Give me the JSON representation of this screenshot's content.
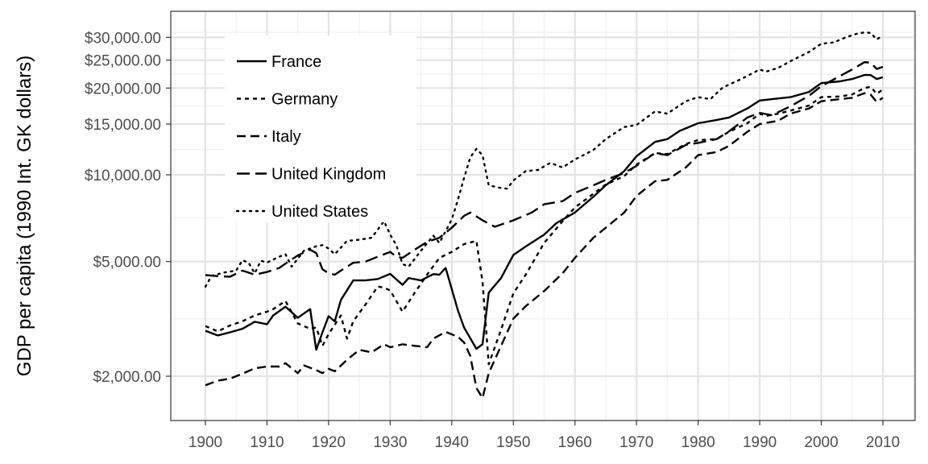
{
  "chart_data": {
    "type": "line",
    "title": "",
    "xlabel": "",
    "ylabel": "GDP per capita (1990 Int. GK dollars)",
    "y_scale": "log",
    "xlim": [
      1900,
      2010
    ],
    "ylim": [
      1700,
      32500
    ],
    "x_ticks": [
      1900,
      1910,
      1920,
      1930,
      1940,
      1950,
      1960,
      1970,
      1980,
      1990,
      2000,
      2010
    ],
    "x_tick_labels": [
      "1900",
      "1910",
      "1920",
      "1930",
      "1940",
      "1950",
      "1960",
      "1970",
      "1980",
      "1990",
      "2000",
      "2010"
    ],
    "y_ticks": [
      2000,
      5000,
      10000,
      15000,
      20000,
      25000,
      30000
    ],
    "y_tick_labels": [
      "$2,000.00",
      "$5,000.00",
      "$10,000.00",
      "$15,000.00",
      "$20,000.00",
      "$25,000.00",
      "$30,000.00"
    ],
    "grid": true,
    "legend_position": "top-left",
    "series": [
      {
        "name": "France",
        "dash": "solid",
        "points": [
          [
            1900,
            2876
          ],
          [
            1902,
            2770
          ],
          [
            1904,
            2840
          ],
          [
            1906,
            2920
          ],
          [
            1908,
            3090
          ],
          [
            1910,
            3030
          ],
          [
            1911,
            3250
          ],
          [
            1913,
            3485
          ],
          [
            1915,
            3190
          ],
          [
            1917,
            3420
          ],
          [
            1918,
            2470
          ],
          [
            1919,
            2840
          ],
          [
            1920,
            3230
          ],
          [
            1921,
            3100
          ],
          [
            1922,
            3680
          ],
          [
            1924,
            4300
          ],
          [
            1926,
            4300
          ],
          [
            1928,
            4350
          ],
          [
            1930,
            4530
          ],
          [
            1932,
            4150
          ],
          [
            1933,
            4380
          ],
          [
            1935,
            4300
          ],
          [
            1937,
            4520
          ],
          [
            1938,
            4500
          ],
          [
            1939,
            4750
          ],
          [
            1941,
            3380
          ],
          [
            1942,
            2950
          ],
          [
            1944,
            2490
          ],
          [
            1945,
            2580
          ],
          [
            1946,
            3900
          ],
          [
            1948,
            4380
          ],
          [
            1950,
            5270
          ],
          [
            1952,
            5640
          ],
          [
            1955,
            6200
          ],
          [
            1957,
            6800
          ],
          [
            1960,
            7400
          ],
          [
            1963,
            8400
          ],
          [
            1965,
            9200
          ],
          [
            1968,
            10300
          ],
          [
            1970,
            11600
          ],
          [
            1973,
            13000
          ],
          [
            1975,
            13300
          ],
          [
            1977,
            14200
          ],
          [
            1980,
            15100
          ],
          [
            1983,
            15500
          ],
          [
            1985,
            15800
          ],
          [
            1988,
            17000
          ],
          [
            1990,
            18100
          ],
          [
            1992,
            18300
          ],
          [
            1995,
            18600
          ],
          [
            1998,
            19400
          ],
          [
            2000,
            20800
          ],
          [
            2003,
            21100
          ],
          [
            2005,
            21500
          ],
          [
            2007,
            22200
          ],
          [
            2008,
            22200
          ],
          [
            2009,
            21500
          ],
          [
            2010,
            21800
          ]
        ]
      },
      {
        "name": "Germany",
        "dash": "medium",
        "points": [
          [
            1900,
            2985
          ],
          [
            1902,
            2860
          ],
          [
            1904,
            3000
          ],
          [
            1906,
            3100
          ],
          [
            1908,
            3250
          ],
          [
            1910,
            3350
          ],
          [
            1911,
            3420
          ],
          [
            1913,
            3650
          ],
          [
            1915,
            3050
          ],
          [
            1917,
            2920
          ],
          [
            1918,
            2950
          ],
          [
            1919,
            2550
          ],
          [
            1920,
            2800
          ],
          [
            1922,
            3250
          ],
          [
            1923,
            2700
          ],
          [
            1924,
            3100
          ],
          [
            1926,
            3550
          ],
          [
            1928,
            4100
          ],
          [
            1929,
            4050
          ],
          [
            1930,
            3970
          ],
          [
            1932,
            3350
          ],
          [
            1934,
            3900
          ],
          [
            1936,
            4500
          ],
          [
            1938,
            5150
          ],
          [
            1940,
            5400
          ],
          [
            1942,
            5750
          ],
          [
            1944,
            5900
          ],
          [
            1945,
            4250
          ],
          [
            1946,
            2200
          ],
          [
            1948,
            2900
          ],
          [
            1950,
            3880
          ],
          [
            1952,
            4500
          ],
          [
            1955,
            5800
          ],
          [
            1958,
            6900
          ],
          [
            1960,
            7700
          ],
          [
            1963,
            8600
          ],
          [
            1965,
            9250
          ],
          [
            1968,
            9900
          ],
          [
            1970,
            10850
          ],
          [
            1973,
            11900
          ],
          [
            1975,
            11800
          ],
          [
            1978,
            12800
          ],
          [
            1980,
            13200
          ],
          [
            1983,
            13300
          ],
          [
            1985,
            14100
          ],
          [
            1988,
            15100
          ],
          [
            1990,
            16300
          ],
          [
            1991,
            16000
          ],
          [
            1993,
            16300
          ],
          [
            1995,
            16700
          ],
          [
            1998,
            17400
          ],
          [
            2000,
            18600
          ],
          [
            2003,
            18700
          ],
          [
            2005,
            19000
          ],
          [
            2007,
            20000
          ],
          [
            2008,
            20200
          ],
          [
            2009,
            19100
          ],
          [
            2010,
            19800
          ]
        ]
      },
      {
        "name": "Italy",
        "dash": "long",
        "points": [
          [
            1900,
            1860
          ],
          [
            1902,
            1930
          ],
          [
            1904,
            1960
          ],
          [
            1906,
            2040
          ],
          [
            1908,
            2130
          ],
          [
            1910,
            2160
          ],
          [
            1912,
            2160
          ],
          [
            1913,
            2220
          ],
          [
            1915,
            2050
          ],
          [
            1916,
            2180
          ],
          [
            1918,
            2100
          ],
          [
            1919,
            2050
          ],
          [
            1920,
            2120
          ],
          [
            1921,
            2080
          ],
          [
            1923,
            2280
          ],
          [
            1925,
            2470
          ],
          [
            1927,
            2420
          ],
          [
            1929,
            2580
          ],
          [
            1930,
            2520
          ],
          [
            1932,
            2580
          ],
          [
            1934,
            2550
          ],
          [
            1936,
            2520
          ],
          [
            1937,
            2700
          ],
          [
            1939,
            2850
          ],
          [
            1941,
            2740
          ],
          [
            1942,
            2620
          ],
          [
            1943,
            2350
          ],
          [
            1944,
            1820
          ],
          [
            1945,
            1680
          ],
          [
            1946,
            2050
          ],
          [
            1948,
            2550
          ],
          [
            1950,
            3170
          ],
          [
            1952,
            3500
          ],
          [
            1955,
            3950
          ],
          [
            1958,
            4550
          ],
          [
            1960,
            5150
          ],
          [
            1963,
            6050
          ],
          [
            1965,
            6550
          ],
          [
            1968,
            7400
          ],
          [
            1970,
            8450
          ],
          [
            1973,
            9500
          ],
          [
            1975,
            9600
          ],
          [
            1978,
            10600
          ],
          [
            1980,
            11700
          ],
          [
            1983,
            12000
          ],
          [
            1985,
            12600
          ],
          [
            1988,
            14100
          ],
          [
            1990,
            15000
          ],
          [
            1993,
            15400
          ],
          [
            1995,
            16300
          ],
          [
            1998,
            17000
          ],
          [
            2000,
            18000
          ],
          [
            2003,
            18300
          ],
          [
            2005,
            18500
          ],
          [
            2007,
            19200
          ],
          [
            2008,
            19000
          ],
          [
            2009,
            17900
          ],
          [
            2010,
            18500
          ]
        ]
      },
      {
        "name": "United Kingdom",
        "dash": "xlong",
        "points": [
          [
            1900,
            4490
          ],
          [
            1902,
            4450
          ],
          [
            1904,
            4430
          ],
          [
            1906,
            4650
          ],
          [
            1908,
            4500
          ],
          [
            1910,
            4600
          ],
          [
            1912,
            4750
          ],
          [
            1913,
            4920
          ],
          [
            1915,
            5250
          ],
          [
            1917,
            5500
          ],
          [
            1918,
            5350
          ],
          [
            1919,
            4700
          ],
          [
            1920,
            4550
          ],
          [
            1921,
            4500
          ],
          [
            1922,
            4650
          ],
          [
            1924,
            4950
          ],
          [
            1926,
            5000
          ],
          [
            1928,
            5200
          ],
          [
            1930,
            5400
          ],
          [
            1931,
            5200
          ],
          [
            1932,
            5150
          ],
          [
            1934,
            5500
          ],
          [
            1936,
            5850
          ],
          [
            1938,
            6050
          ],
          [
            1940,
            6550
          ],
          [
            1942,
            7200
          ],
          [
            1943,
            7400
          ],
          [
            1945,
            6950
          ],
          [
            1947,
            6600
          ],
          [
            1950,
            6950
          ],
          [
            1953,
            7400
          ],
          [
            1955,
            7900
          ],
          [
            1958,
            8100
          ],
          [
            1960,
            8650
          ],
          [
            1963,
            9200
          ],
          [
            1965,
            9600
          ],
          [
            1968,
            10150
          ],
          [
            1970,
            10750
          ],
          [
            1973,
            11900
          ],
          [
            1975,
            11700
          ],
          [
            1978,
            12700
          ],
          [
            1980,
            12900
          ],
          [
            1983,
            13300
          ],
          [
            1985,
            14150
          ],
          [
            1988,
            15800
          ],
          [
            1990,
            16400
          ],
          [
            1992,
            16100
          ],
          [
            1995,
            17300
          ],
          [
            1998,
            18800
          ],
          [
            2000,
            20300
          ],
          [
            2003,
            22000
          ],
          [
            2005,
            23200
          ],
          [
            2007,
            24600
          ],
          [
            2008,
            24500
          ],
          [
            2009,
            23300
          ],
          [
            2010,
            23700
          ]
        ]
      },
      {
        "name": "United States",
        "dash": "dotted",
        "points": [
          [
            1900,
            4090
          ],
          [
            1901,
            4460
          ],
          [
            1903,
            4580
          ],
          [
            1905,
            4650
          ],
          [
            1906,
            5050
          ],
          [
            1907,
            4960
          ],
          [
            1908,
            4550
          ],
          [
            1909,
            5030
          ],
          [
            1910,
            4960
          ],
          [
            1912,
            5200
          ],
          [
            1913,
            5300
          ],
          [
            1914,
            4800
          ],
          [
            1916,
            5450
          ],
          [
            1918,
            5650
          ],
          [
            1919,
            5700
          ],
          [
            1920,
            5550
          ],
          [
            1921,
            5300
          ],
          [
            1923,
            5900
          ],
          [
            1925,
            5950
          ],
          [
            1927,
            6050
          ],
          [
            1929,
            6900
          ],
          [
            1930,
            6200
          ],
          [
            1931,
            5700
          ],
          [
            1932,
            4900
          ],
          [
            1933,
            4800
          ],
          [
            1935,
            5450
          ],
          [
            1937,
            6150
          ],
          [
            1938,
            5800
          ],
          [
            1940,
            7000
          ],
          [
            1941,
            8200
          ],
          [
            1942,
            9750
          ],
          [
            1943,
            11500
          ],
          [
            1944,
            12300
          ],
          [
            1945,
            11700
          ],
          [
            1946,
            9200
          ],
          [
            1948,
            9000
          ],
          [
            1949,
            8950
          ],
          [
            1950,
            9560
          ],
          [
            1952,
            10300
          ],
          [
            1954,
            10400
          ],
          [
            1956,
            11000
          ],
          [
            1958,
            10600
          ],
          [
            1960,
            11300
          ],
          [
            1963,
            12200
          ],
          [
            1965,
            13300
          ],
          [
            1968,
            14650
          ],
          [
            1970,
            14900
          ],
          [
            1973,
            16600
          ],
          [
            1975,
            16300
          ],
          [
            1978,
            18000
          ],
          [
            1980,
            18600
          ],
          [
            1982,
            18300
          ],
          [
            1984,
            20100
          ],
          [
            1987,
            21500
          ],
          [
            1990,
            23200
          ],
          [
            1991,
            22800
          ],
          [
            1993,
            23500
          ],
          [
            1995,
            24800
          ],
          [
            1998,
            26700
          ],
          [
            2000,
            28500
          ],
          [
            2002,
            28800
          ],
          [
            2004,
            30000
          ],
          [
            2006,
            31000
          ],
          [
            2007,
            31200
          ],
          [
            2008,
            31100
          ],
          [
            2009,
            29500
          ],
          [
            2010,
            30500
          ]
        ]
      }
    ]
  }
}
